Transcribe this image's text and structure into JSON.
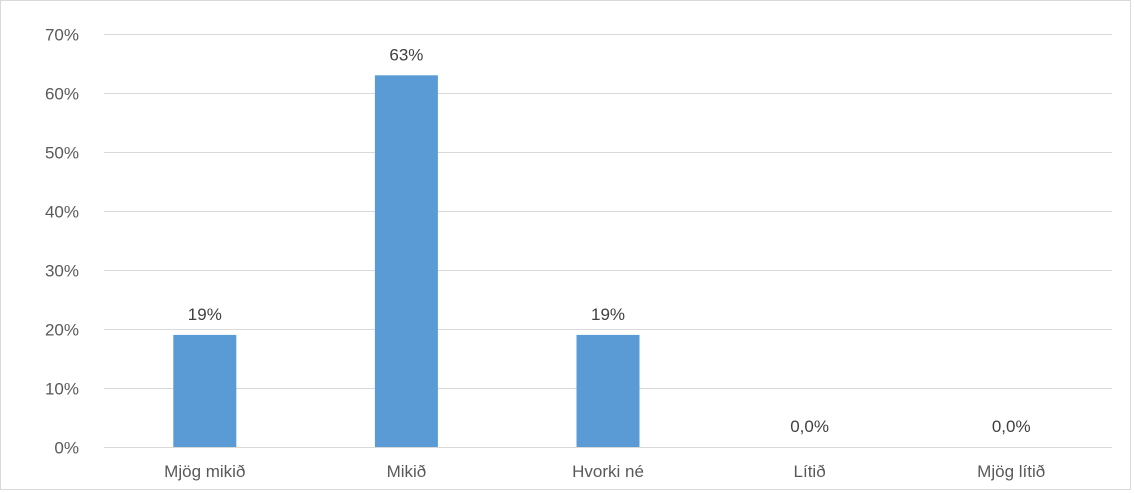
{
  "chart_data": {
    "type": "bar",
    "title": "",
    "xlabel": "",
    "ylabel": "",
    "categories": [
      "Mjög mikið",
      "Mikið",
      "Hvorki né",
      "Lítið",
      "Mjög lítið"
    ],
    "series": [
      {
        "values": [
          0.19,
          0.63,
          0.19,
          0.0,
          0.0
        ],
        "data_labels": [
          "19%",
          "63%",
          "19%",
          "0,0%",
          "0,0%"
        ],
        "color": "#5b9bd5"
      }
    ],
    "ylim": [
      0,
      0.7
    ],
    "yticks": [
      0,
      0.1,
      0.2,
      0.3,
      0.4,
      0.5,
      0.6,
      0.7
    ],
    "ytick_labels": [
      "0%",
      "10%",
      "20%",
      "30%",
      "40%",
      "50%",
      "60%",
      "70%"
    ],
    "grid": true,
    "legend": "none",
    "gridline_color": "#d9d9d9"
  }
}
